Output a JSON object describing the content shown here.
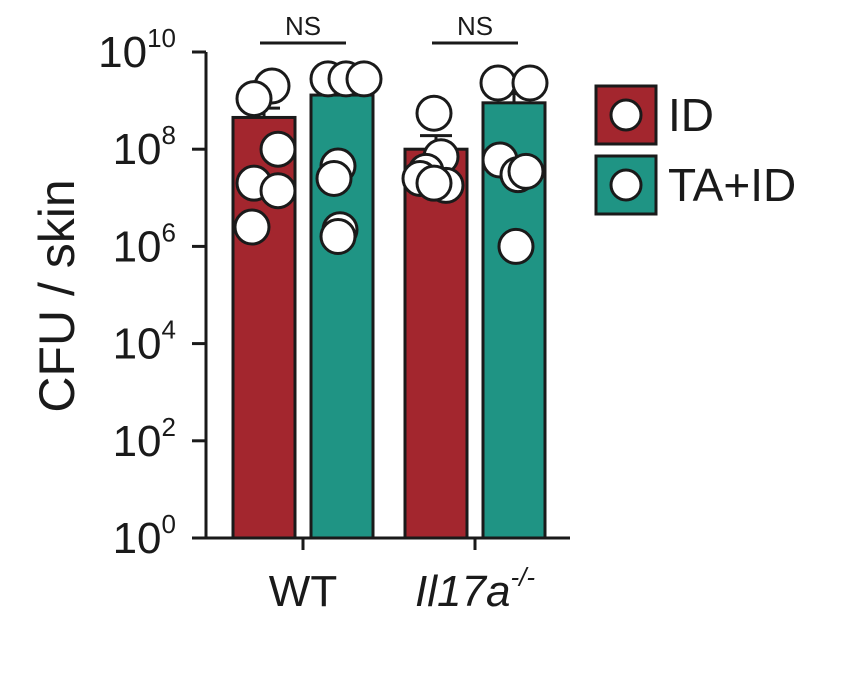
{
  "chart_data": {
    "type": "bar",
    "ylabel": "CFU / skin",
    "yscale": "log",
    "ylim": [
      1,
      10000000000
    ],
    "yticks": [
      {
        "base": "10",
        "exp": "0",
        "value": 1
      },
      {
        "base": "10",
        "exp": "2",
        "value": 100
      },
      {
        "base": "10",
        "exp": "4",
        "value": 10000
      },
      {
        "base": "10",
        "exp": "6",
        "value": 1000000
      },
      {
        "base": "10",
        "exp": "8",
        "value": 100000000
      },
      {
        "base": "10",
        "exp": "10",
        "value": 10000000000
      }
    ],
    "categories": [
      {
        "label": "WT",
        "label_sup": "",
        "italic": false
      },
      {
        "label": "Il17a",
        "label_sup": "-/-",
        "italic": true
      }
    ],
    "series": [
      {
        "name": "ID",
        "color": "#a3262e",
        "values": [
          450000000,
          100000000
        ],
        "error_upper": [
          700000000,
          190000000
        ],
        "points": [
          [
            2000000000,
            1100000000,
            100000000,
            20000000,
            14000000,
            2500000
          ],
          [
            550000000,
            70000000,
            35000000,
            25000000,
            18000000,
            20000000
          ]
        ]
      },
      {
        "name": "TA+ID",
        "color": "#1f9484",
        "values": [
          1300000000,
          900000000
        ],
        "error_upper": [
          1800000000,
          1400000000
        ],
        "points": [
          [
            2800000000,
            2800000000,
            2800000000,
            45000000,
            25000000,
            2200000,
            1600000
          ],
          [
            2300000000,
            2300000000,
            60000000,
            30000000,
            35000000,
            1000000
          ]
        ]
      }
    ],
    "significance": [
      {
        "category": 0,
        "label": "NS"
      },
      {
        "category": 1,
        "label": "NS"
      }
    ],
    "legend": {
      "placement": "right",
      "marker": "circle"
    },
    "grid": false
  }
}
